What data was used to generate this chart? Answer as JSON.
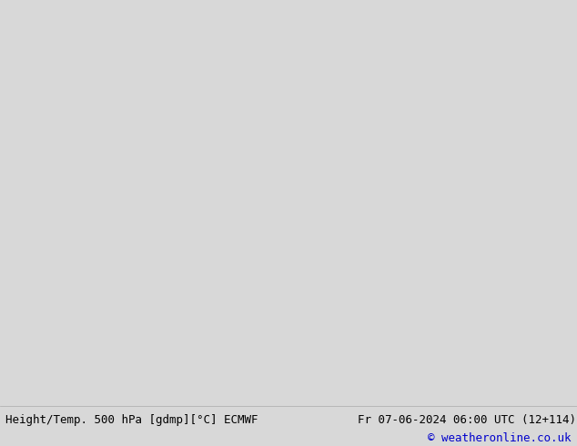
{
  "title_left": "Height/Temp. 500 hPa [gdmp][°C] ECMWF",
  "title_right": "Fr 07-06-2024 06:00 UTC (12+114)",
  "copyright": "© weatheronline.co.uk",
  "land_color": "#aae88a",
  "ocean_color": "#d8d8d8",
  "background_color": "#d8d8d8",
  "border_color": "#333333",
  "state_border_color": "#333333",
  "map_extent": [
    -170,
    -50,
    20,
    85
  ],
  "figsize": [
    6.34,
    4.9
  ],
  "dpi": 100,
  "bottom_bg_color": "#ffffff",
  "text_color": "#000000",
  "copyright_color": "#0000cc",
  "font_size_labels": 9,
  "font_size_copyright": 9
}
